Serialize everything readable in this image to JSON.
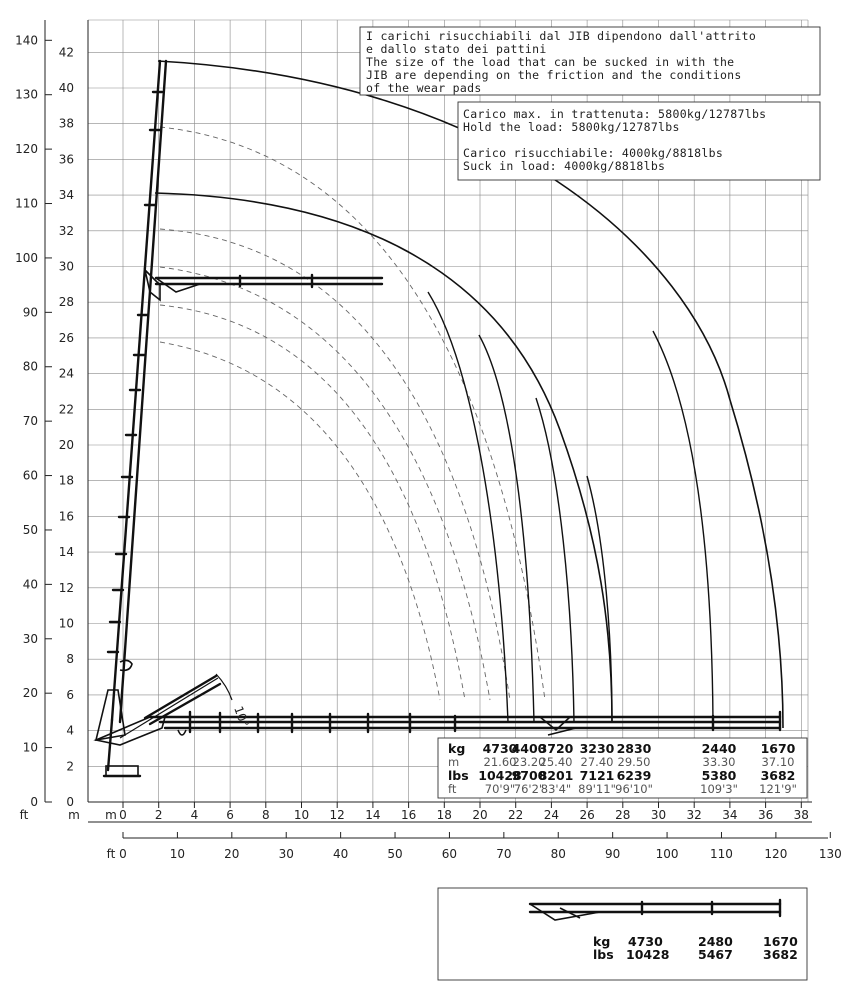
{
  "chart_data": {
    "type": "line",
    "units": {
      "left_outer": "ft",
      "left_inner": "m",
      "bottom_inner": "m",
      "bottom_outer": "ft"
    },
    "x_ticks_m": [
      "0",
      "2",
      "4",
      "6",
      "8",
      "10",
      "12",
      "14",
      "16",
      "18",
      "20",
      "22",
      "24",
      "26",
      "28",
      "30",
      "32",
      "34",
      "36",
      "38"
    ],
    "x_ticks_ft": [
      "0",
      "10",
      "20",
      "30",
      "40",
      "50",
      "60",
      "70",
      "80",
      "90",
      "100",
      "110",
      "120",
      "130"
    ],
    "y_ticks_m": [
      "2",
      "4",
      "6",
      "8",
      "10",
      "12",
      "14",
      "16",
      "18",
      "20",
      "22",
      "24",
      "26",
      "28",
      "30",
      "32",
      "34",
      "36",
      "38",
      "40",
      "42"
    ],
    "y_ticks_ft": [
      "0",
      "10",
      "20",
      "30",
      "40",
      "50",
      "60",
      "70",
      "80",
      "90",
      "100",
      "110",
      "120",
      "130",
      "140"
    ],
    "y_label_m_zero": "0",
    "max_reach_m": [
      21.6,
      23.2,
      25.4,
      27.4,
      29.5,
      33.3,
      37.1
    ],
    "outer_envelope_height_m": 41.7,
    "inner_envelope_height_m": 34.2
  },
  "note": {
    "lines": [
      "I carichi risucchiabili dal JIB dipendono dall'attrito",
      "e dallo stato dei pattini",
      "The size of the load that can be sucked in with the",
      "JIB are depending on the friction and the conditions",
      "of the wear pads"
    ]
  },
  "hold_box": {
    "lines": [
      "Carico max. in trattenuta: 5800kg/12787lbs",
      "Hold the load: 5800kg/12787lbs",
      "",
      "Carico risucchiabile: 4000kg/8818lbs",
      "Suck in load: 4000kg/8818lbs"
    ]
  },
  "load_table": {
    "labels": {
      "kg": "kg",
      "m": "m",
      "lbs": "lbs",
      "ft": "ft"
    },
    "kg": [
      "4730",
      "4400",
      "3720",
      "3230",
      "2830",
      "2440",
      "1670"
    ],
    "m": [
      "21.60",
      "23.20",
      "25.40",
      "27.40",
      "29.50",
      "33.30",
      "37.10"
    ],
    "lbs": [
      "10428",
      "9700",
      "8201",
      "7121",
      "6239",
      "5380",
      "3682"
    ],
    "ft": [
      "70'9\"",
      "76'2\"",
      "83'4\"",
      "89'11\"",
      "96'10\"",
      "109'3\"",
      "121'9\""
    ]
  },
  "angle_label": "10°",
  "inset": {
    "labels": {
      "kg": "kg",
      "lbs": "lbs"
    },
    "kg": [
      "4730",
      "2480",
      "1670"
    ],
    "lbs": [
      "10428",
      "5467",
      "3682"
    ]
  }
}
